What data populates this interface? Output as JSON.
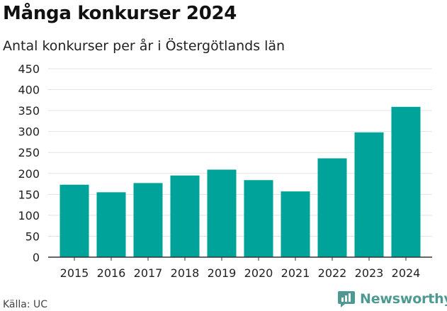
{
  "header": {
    "title": "Många konkurser 2024",
    "subtitle": "Antal konkurser per år i Östergötlands län"
  },
  "footer": {
    "source": "Källa: UC",
    "brand": "Newsworthy",
    "brand_icon": "newsworthy-logo-icon"
  },
  "colors": {
    "bar": "#00a39a",
    "grid": "#e3e3e3",
    "axis": "#333333",
    "brand": "#4e9a92"
  },
  "chart_data": {
    "type": "bar",
    "title": "Många konkurser 2024",
    "subtitle": "Antal konkurser per år i Östergötlands län",
    "categories": [
      "2015",
      "2016",
      "2017",
      "2018",
      "2019",
      "2020",
      "2021",
      "2022",
      "2023",
      "2024"
    ],
    "values": [
      173,
      155,
      177,
      195,
      209,
      184,
      157,
      236,
      298,
      359
    ],
    "ylim": [
      0,
      450
    ],
    "yticks": [
      "0",
      "50",
      "100",
      "150",
      "200",
      "250",
      "300",
      "350",
      "400",
      "450"
    ],
    "xlabel": "",
    "ylabel": "",
    "grid": true,
    "legend": "none"
  }
}
